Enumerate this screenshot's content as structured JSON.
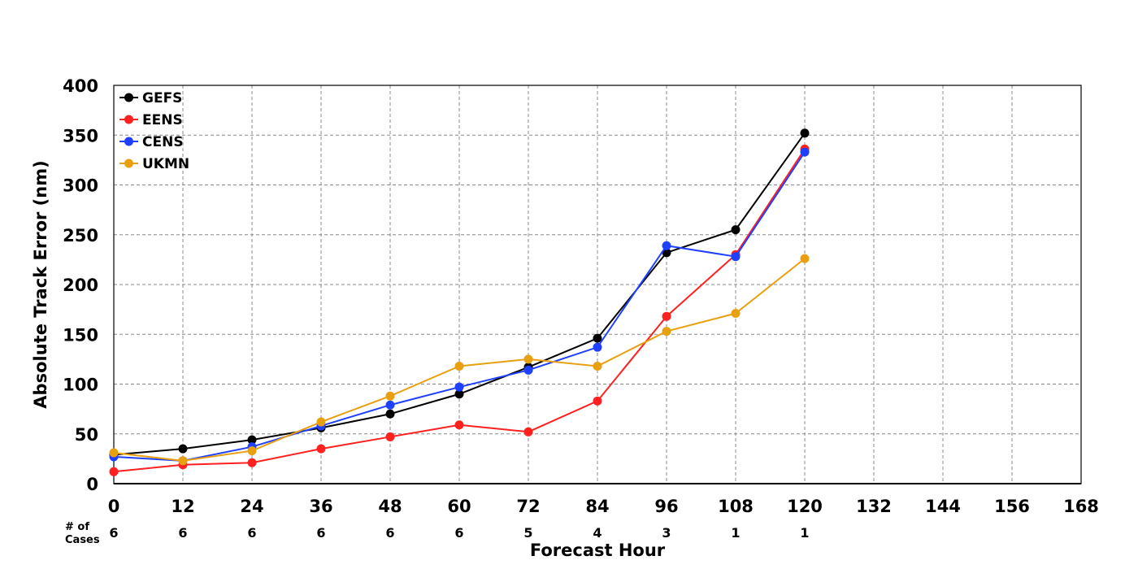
{
  "chart_data": {
    "type": "line",
    "xlabel": "Forecast Hour",
    "ylabel": "Absolute Track Error (nm)",
    "xlim": [
      0,
      168
    ],
    "ylim": [
      0,
      400
    ],
    "x_ticks": [
      0,
      12,
      24,
      36,
      48,
      60,
      72,
      84,
      96,
      108,
      120,
      132,
      144,
      156,
      168
    ],
    "y_ticks": [
      0,
      50,
      100,
      150,
      200,
      250,
      300,
      350,
      400
    ],
    "grid": true,
    "legend_position": "top-left",
    "x": [
      0,
      12,
      24,
      36,
      48,
      60,
      72,
      84,
      96,
      108,
      120
    ],
    "series": [
      {
        "name": "GEFS",
        "color": "#000000",
        "values": [
          29,
          35,
          44,
          56,
          70,
          90,
          117,
          146,
          232,
          255,
          352
        ]
      },
      {
        "name": "EENS",
        "color": "#ff2020",
        "values": [
          12,
          19,
          21,
          35,
          47,
          59,
          52,
          83,
          168,
          230,
          336
        ]
      },
      {
        "name": "CENS",
        "color": "#2040ff",
        "values": [
          27,
          23,
          37,
          58,
          79,
          97,
          114,
          137,
          239,
          228,
          333
        ]
      },
      {
        "name": "UKMN",
        "color": "#e8a010",
        "values": [
          31,
          23,
          33,
          62,
          88,
          118,
          125,
          118,
          153,
          171,
          226
        ]
      }
    ],
    "cases_label": "# of Cases",
    "cases": [
      "6",
      "6",
      "6",
      "6",
      "6",
      "6",
      "5",
      "4",
      "3",
      "1",
      "1"
    ]
  }
}
